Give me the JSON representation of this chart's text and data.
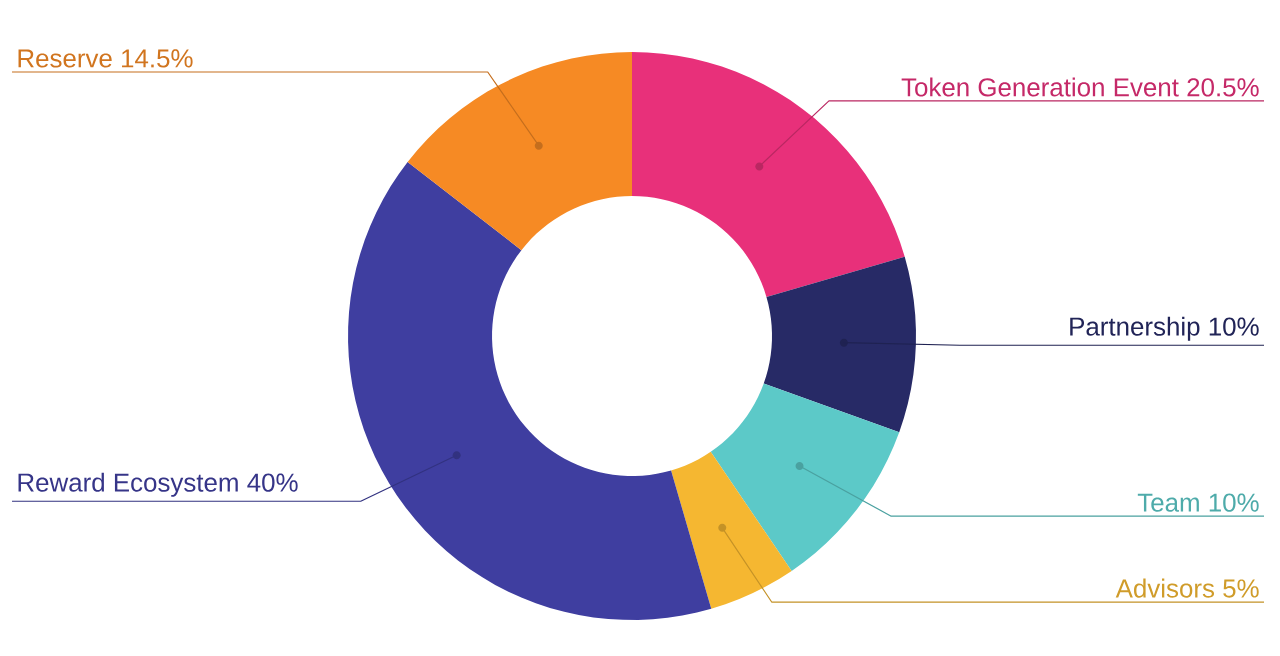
{
  "chart_data": {
    "type": "donut",
    "categories": [
      "Token Generation Event",
      "Partnership",
      "Team",
      "Advisors",
      "Reward Ecosystem",
      "Reserve"
    ],
    "values": [
      20.5,
      10,
      10,
      5,
      40,
      14.5
    ],
    "value_labels": [
      "20.5%",
      "10%",
      "10%",
      "5%",
      "40%",
      "14.5%"
    ],
    "colors": [
      "#e8307a",
      "#272a66",
      "#5cc9c8",
      "#f5b731",
      "#3f3ea0",
      "#f68a24"
    ]
  }
}
